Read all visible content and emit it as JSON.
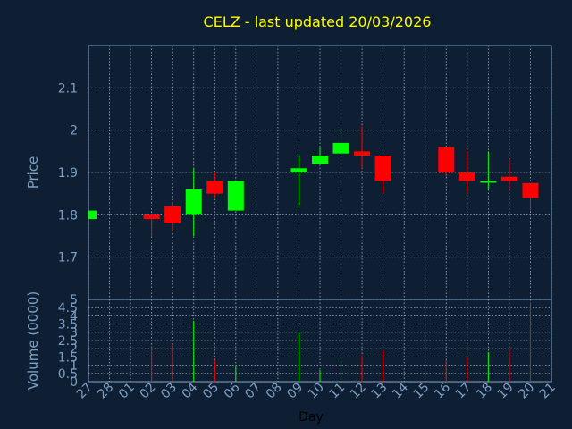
{
  "chart_data": [
    {
      "type": "candlestick",
      "title": "CELZ - last updated 20/03/2026",
      "ylabel": "Price",
      "ylim": [
        1.6,
        2.2
      ],
      "yticks": [
        1.7,
        1.8,
        1.9,
        2,
        2.1
      ],
      "grid": true,
      "up_color": "#00ff00",
      "down_color": "#ff0000",
      "categories": [
        "27",
        "28",
        "01",
        "02",
        "03",
        "04",
        "05",
        "06",
        "07",
        "08",
        "09",
        "10",
        "11",
        "12",
        "13",
        "14",
        "15",
        "16",
        "17",
        "18",
        "19",
        "20",
        "21"
      ],
      "candles": [
        {
          "x": "27",
          "open": 1.79,
          "high": 1.81,
          "low": 1.79,
          "close": 1.81
        },
        {
          "x": "02",
          "open": 1.8,
          "high": 1.8,
          "low": 1.75,
          "close": 1.79
        },
        {
          "x": "03",
          "open": 1.82,
          "high": 1.83,
          "low": 1.76,
          "close": 1.78
        },
        {
          "x": "04",
          "open": 1.8,
          "high": 1.91,
          "low": 1.75,
          "close": 1.86
        },
        {
          "x": "05",
          "open": 1.88,
          "high": 1.9,
          "low": 1.84,
          "close": 1.85
        },
        {
          "x": "06",
          "open": 1.81,
          "high": 1.88,
          "low": 1.81,
          "close": 1.88
        },
        {
          "x": "09",
          "open": 1.9,
          "high": 1.94,
          "low": 1.82,
          "close": 1.91
        },
        {
          "x": "10",
          "open": 1.92,
          "high": 1.96,
          "low": 1.92,
          "close": 1.94
        },
        {
          "x": "11",
          "open": 1.945,
          "high": 2.0,
          "low": 1.945,
          "close": 1.97
        },
        {
          "x": "12",
          "open": 1.95,
          "high": 2.01,
          "low": 1.91,
          "close": 1.94
        },
        {
          "x": "13",
          "open": 1.94,
          "high": 1.94,
          "low": 1.85,
          "close": 1.88
        },
        {
          "x": "16",
          "open": 1.96,
          "high": 1.96,
          "low": 1.89,
          "close": 1.9
        },
        {
          "x": "17",
          "open": 1.9,
          "high": 1.95,
          "low": 1.85,
          "close": 1.88
        },
        {
          "x": "18",
          "open": 1.88,
          "high": 1.95,
          "low": 1.86,
          "close": 1.88
        },
        {
          "x": "19",
          "open": 1.89,
          "high": 1.93,
          "low": 1.86,
          "close": 1.88
        },
        {
          "x": "20",
          "open": 1.875,
          "high": 1.875,
          "low": 1.81,
          "close": 1.84
        }
      ]
    },
    {
      "type": "bar",
      "xlabel": "Day",
      "ylabel": "Volume (0000)",
      "ylim": [
        0,
        5
      ],
      "yticks": [
        "0",
        "0.5",
        "1",
        "1.5",
        "2",
        "2.5",
        "3",
        "3.5",
        "4",
        "4.5",
        "5"
      ],
      "grid": true,
      "categories": [
        "27",
        "28",
        "01",
        "02",
        "03",
        "04",
        "05",
        "06",
        "07",
        "08",
        "09",
        "10",
        "11",
        "12",
        "13",
        "14",
        "15",
        "16",
        "17",
        "18",
        "19",
        "20",
        "21"
      ],
      "bars": [
        {
          "x": "02",
          "value": 2.1,
          "color": "#ff0000"
        },
        {
          "x": "03",
          "value": 2.3,
          "color": "#ff0000"
        },
        {
          "x": "04",
          "value": 3.7,
          "color": "#00ff00"
        },
        {
          "x": "05",
          "value": 1.3,
          "color": "#ff0000"
        },
        {
          "x": "06",
          "value": 1.0,
          "color": "#00ff00"
        },
        {
          "x": "09",
          "value": 3.0,
          "color": "#00ff00"
        },
        {
          "x": "10",
          "value": 0.7,
          "color": "#00ff00"
        },
        {
          "x": "11",
          "value": 1.4,
          "color": "#00ff00"
        },
        {
          "x": "12",
          "value": 1.6,
          "color": "#ff0000"
        },
        {
          "x": "13",
          "value": 1.9,
          "color": "#ff0000"
        },
        {
          "x": "16",
          "value": 1.3,
          "color": "#ff0000"
        },
        {
          "x": "17",
          "value": 1.5,
          "color": "#ff0000"
        },
        {
          "x": "18",
          "value": 1.8,
          "color": "#00ff00"
        },
        {
          "x": "19",
          "value": 2.0,
          "color": "#ff0000"
        },
        {
          "x": "20",
          "value": 4.8,
          "color": "#ff0000"
        }
      ]
    }
  ]
}
